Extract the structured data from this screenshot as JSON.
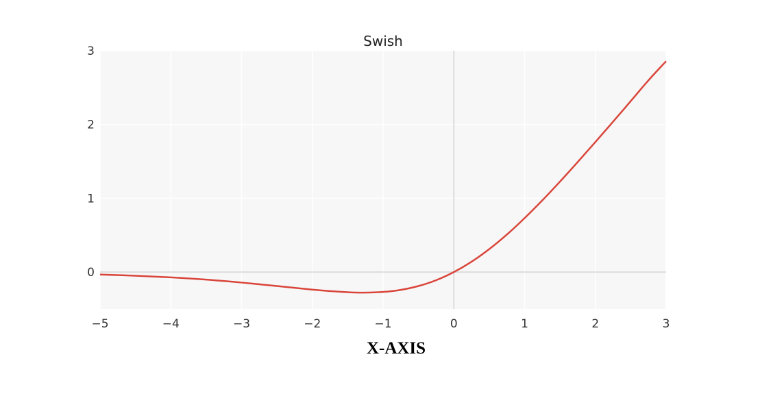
{
  "chart_data": {
    "type": "line",
    "title": "Swish",
    "xlabel": "X-AXIS",
    "ylabel": "",
    "xlim": [
      -5,
      3
    ],
    "ylim": [
      -0.5,
      3
    ],
    "x_ticks": [
      -5,
      -4,
      -3,
      -2,
      -1,
      0,
      1,
      2,
      3
    ],
    "x_tick_labels": [
      "−5",
      "−4",
      "−3",
      "−2",
      "−1",
      "0",
      "1",
      "2",
      "3"
    ],
    "y_ticks": [
      0,
      1,
      2,
      3
    ],
    "y_tick_labels": [
      "0",
      "1",
      "2",
      "3"
    ],
    "grid": true,
    "series": [
      {
        "color": "#d9453a",
        "x": [
          -5,
          -4.5,
          -4,
          -3.5,
          -3,
          -2.5,
          -2,
          -1.75,
          -1.5,
          -1.278,
          -1,
          -0.75,
          -0.5,
          -0.25,
          0,
          0.25,
          0.5,
          0.75,
          1,
          1.25,
          1.5,
          1.75,
          2,
          2.25,
          2.5,
          2.75,
          3
        ],
        "y": [
          -0.033,
          -0.05,
          -0.072,
          -0.102,
          -0.142,
          -0.189,
          -0.238,
          -0.258,
          -0.273,
          -0.278,
          -0.269,
          -0.241,
          -0.189,
          -0.11,
          0,
          0.14,
          0.311,
          0.509,
          0.731,
          0.971,
          1.226,
          1.491,
          1.762,
          2.037,
          2.317,
          2.598,
          2.858
        ]
      }
    ],
    "colors": {
      "plot_background": "#f7f7f7",
      "grid": "#ffffff",
      "zero_lines": "#dddddd"
    }
  }
}
